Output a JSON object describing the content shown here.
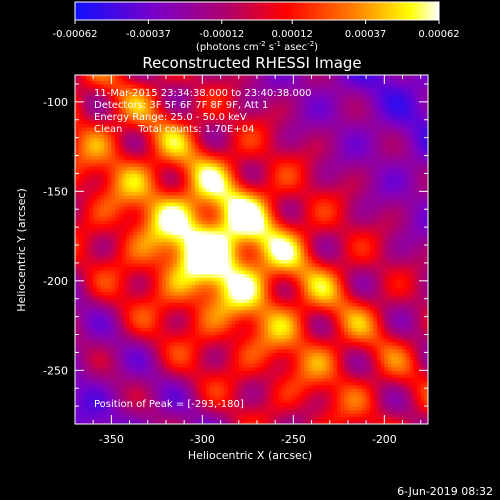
{
  "chart_data": {
    "type": "heatmap",
    "title": "Reconstructed RHESSI Image",
    "xlabel": "Heliocentric X (arcsec)",
    "ylabel": "Heliocentric Y (arcsec)",
    "xlim": [
      -370,
      -176
    ],
    "ylim": [
      -280,
      -85
    ],
    "x_ticks": [
      -350,
      -300,
      -250,
      -200
    ],
    "y_ticks": [
      -100,
      -150,
      -200,
      -250
    ],
    "colorbar": {
      "range": [
        -0.00062,
        0.00062
      ],
      "ticks": [
        "-0.00062",
        "-0.00037",
        "-0.00012",
        "0.00012",
        "0.00037",
        "0.00062"
      ],
      "tick_values": [
        -0.00062,
        -0.00037,
        -0.00012,
        0.00012,
        0.00037,
        0.00062
      ],
      "unit_label": [
        "(photons cm",
        "-2",
        " s",
        "-1",
        " asec",
        "-2",
        ")"
      ]
    },
    "annotations": [
      "11-Mar-2015 23:34:38.000 to 23:40:38.000",
      "Detectors: 3F 5F 6F 7F 8F 9F, Att 1",
      "Energy Range: 25.0 - 50.0 keV",
      "Clean     Total counts: 1.70E+04"
    ],
    "peak_label": "Position of Peak = [-293,-180]",
    "peak": [
      -293,
      -180
    ],
    "footer_date": "6-Jun-2019 08:32",
    "palette": [
      "#1010ff",
      "#7a00c8",
      "#b0006a",
      "#ff0000",
      "#ff8800",
      "#ffff00",
      "#ffffff"
    ],
    "background": "#000000"
  }
}
